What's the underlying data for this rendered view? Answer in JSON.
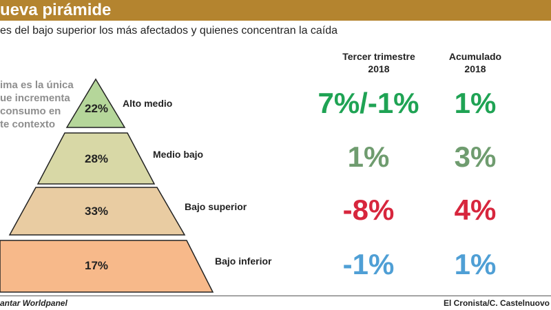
{
  "header": {
    "title": "ueva pirámide"
  },
  "subtitle": "es del bajo superior los más afectados y quienes concentran la caída",
  "columns": [
    {
      "line1": "Tercer trimestre",
      "line2": "2018"
    },
    {
      "line1": "Acumulado",
      "line2": "2018"
    }
  ],
  "note": [
    "ima es la única",
    "ue incrementa",
    " consumo en",
    "te contexto"
  ],
  "colors": {
    "header": "#b4842f",
    "segments": [
      "#b5d69a",
      "#d8d8a6",
      "#e9cca2",
      "#f7b98a"
    ],
    "green": "#1fa354",
    "muted_green": "#6f9c6f",
    "red": "#d7263d",
    "blue": "#4f9fd5"
  },
  "chart_data": {
    "type": "table",
    "rows": [
      {
        "segment": "Alto medio",
        "share": "22%",
        "tercer_trimestre": "7%/-1%",
        "acumulado": "1%",
        "colors": [
          "green",
          "green"
        ]
      },
      {
        "segment": "Medio bajo",
        "share": "28%",
        "tercer_trimestre": "1%",
        "acumulado": "3%",
        "colors": [
          "muted_green",
          "muted_green"
        ]
      },
      {
        "segment": "Bajo superior",
        "share": "33%",
        "tercer_trimestre": "-8%",
        "acumulado": "4%",
        "colors": [
          "red",
          "red"
        ]
      },
      {
        "segment": "Bajo inferior",
        "share": "17%",
        "tercer_trimestre": "-1%",
        "acumulado": "1%",
        "colors": [
          "blue",
          "blue"
        ]
      }
    ]
  },
  "footer": {
    "source": "antar Worldpanel",
    "credit": "El Cronista/C. Castelnuovo"
  }
}
